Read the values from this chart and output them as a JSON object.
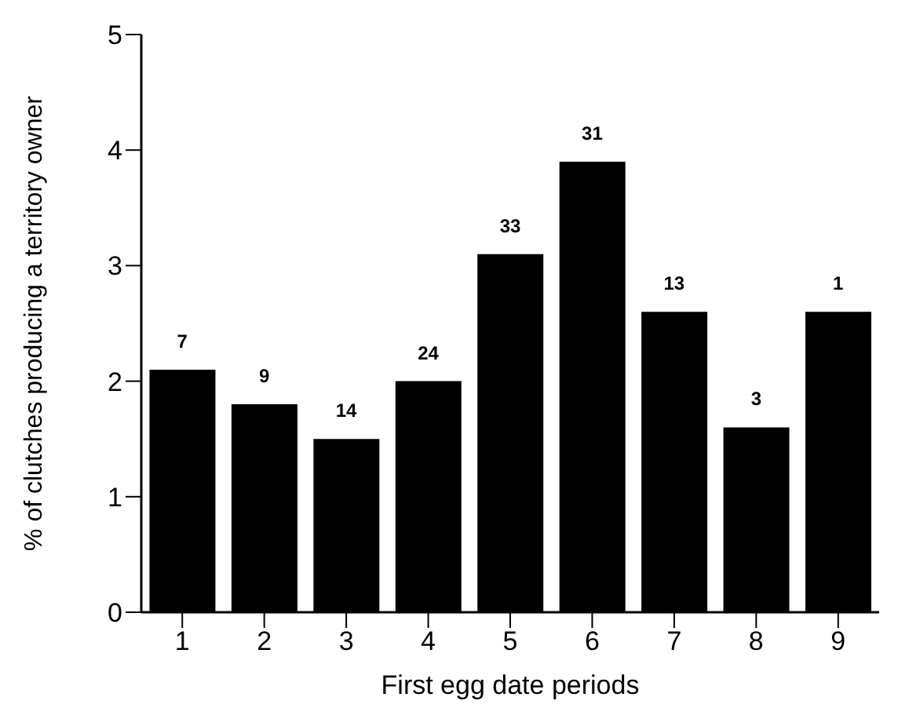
{
  "chart_data": {
    "type": "bar",
    "xlabel": "First egg date periods",
    "ylabel": "% of clutches producing a territory owner",
    "categories": [
      "1",
      "2",
      "3",
      "4",
      "5",
      "6",
      "7",
      "8",
      "9"
    ],
    "values": [
      2.1,
      1.8,
      1.5,
      2.0,
      3.1,
      3.9,
      2.6,
      1.6,
      2.6
    ],
    "annotations": [
      {
        "text": "7",
        "x": "1",
        "y": 2.1
      },
      {
        "text": "9",
        "x": "2",
        "y": 1.8
      },
      {
        "text": "14",
        "x": "3",
        "y": 1.5
      },
      {
        "text": "24",
        "x": "4",
        "y": 2.0
      },
      {
        "text": "33",
        "x": "5",
        "y": 3.1
      },
      {
        "text": "31",
        "x": "6",
        "y": 3.9
      },
      {
        "text": "13",
        "x": "7",
        "y": 2.6
      },
      {
        "text": "3",
        "x": "8",
        "y": 1.6
      },
      {
        "text": "1",
        "x": "9",
        "y": 2.6
      }
    ],
    "color": "#000000",
    "ylim": [
      0,
      5
    ],
    "yticks": [
      0,
      1,
      2,
      3,
      4,
      5
    ],
    "grid": false,
    "legend": false
  }
}
